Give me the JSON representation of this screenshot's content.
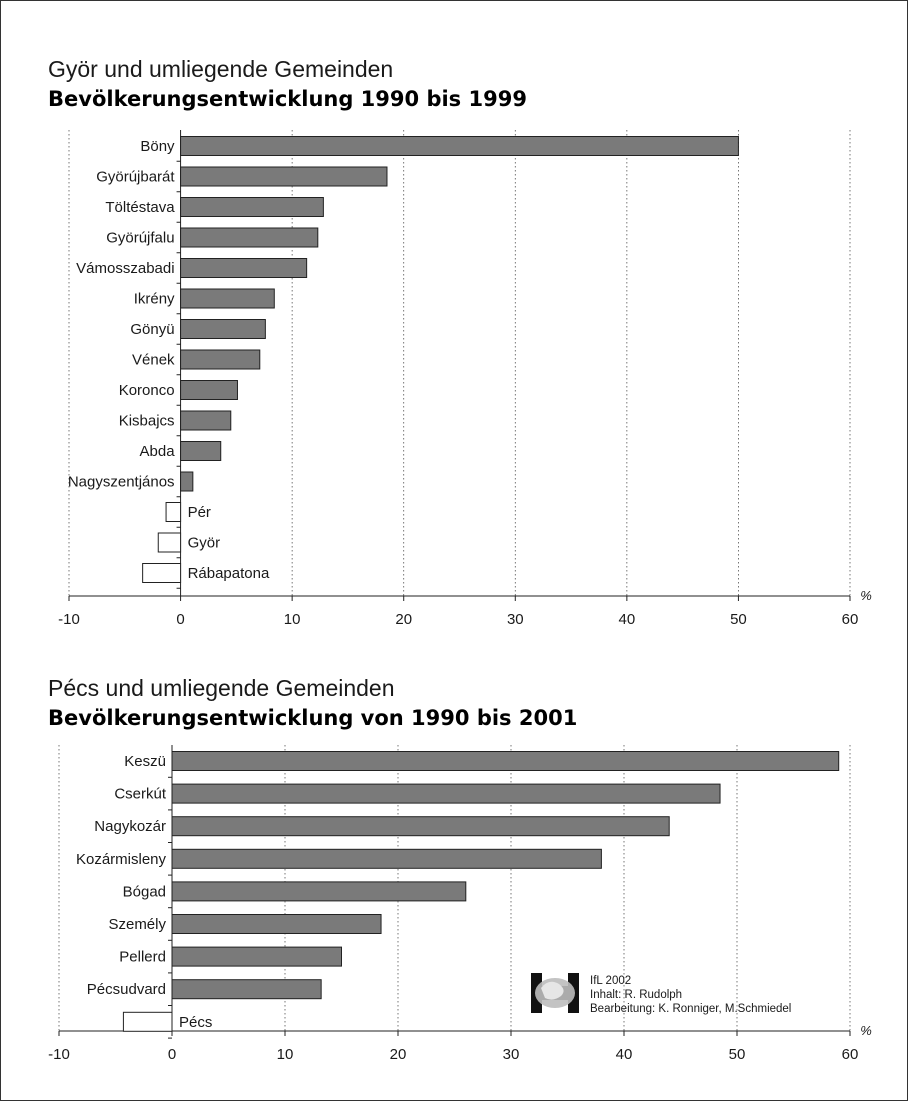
{
  "chart_data": [
    {
      "type": "bar",
      "orientation": "horizontal",
      "title": "Györ und umliegende Gemeinden",
      "subtitle": "Bevölkerungsentwicklung 1990 bis 1999",
      "unit": "%",
      "xlim": [
        -10,
        60
      ],
      "xticks": [
        "-10",
        "0",
        "10",
        "20",
        "30",
        "40",
        "50",
        "60"
      ],
      "categories": [
        "Böny",
        "Györújbarát",
        "Töltéstava",
        "Györújfalu",
        "Vámosszabadi",
        "Ikrény",
        "Gönyü",
        "Vének",
        "Koronco",
        "Kisbajcs",
        "Abda",
        "Nagyszentjános",
        "Pér",
        "Györ",
        "Rábapatona"
      ],
      "values": [
        50,
        18.5,
        12.8,
        12.3,
        11.3,
        8.4,
        7.6,
        7.1,
        5.1,
        4.5,
        3.6,
        1.1,
        -1.3,
        -2.0,
        -3.4
      ],
      "grid": "vertical dotted lines at each tick",
      "colors": {
        "positive": "#7a7a7a",
        "negative": "#ffffff",
        "outline": "#222222"
      }
    },
    {
      "type": "bar",
      "orientation": "horizontal",
      "title": "Pécs und umliegende Gemeinden",
      "subtitle": "Bevölkerungsentwicklung von 1990 bis 2001",
      "unit": "%",
      "xlim": [
        -10,
        60
      ],
      "xticks": [
        "-10",
        "0",
        "10",
        "20",
        "30",
        "40",
        "50",
        "60"
      ],
      "categories": [
        "Keszü",
        "Cserkút",
        "Nagykozár",
        "Kozármisleny",
        "Bógad",
        "Személy",
        "Pellerd",
        "Pécsudvard",
        "Pécs"
      ],
      "values": [
        59,
        48.5,
        44,
        38,
        26,
        18.5,
        15,
        13.2,
        -4.3
      ],
      "grid": "vertical dotted lines at each tick",
      "colors": {
        "positive": "#7a7a7a",
        "negative": "#ffffff",
        "outline": "#222222"
      }
    }
  ],
  "credits": {
    "line1": "IfL 2002",
    "line2": "Inhalt: R. Rudolph",
    "line3": "Bearbeitung: K. Ronniger, M.Schmiedel"
  }
}
